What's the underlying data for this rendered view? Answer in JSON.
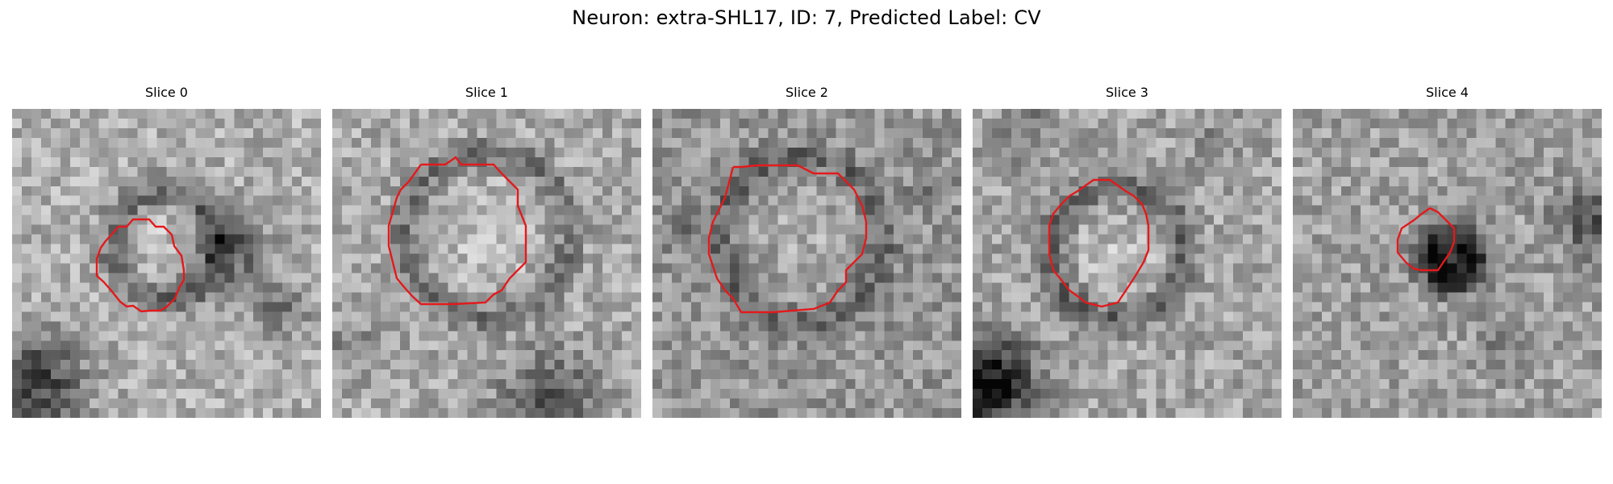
{
  "figure": {
    "title": "Neuron: extra-SHL17, ID: 7, Predicted Label: CV",
    "contour_color": "#e31a1c",
    "colormap": "gray",
    "panels": [
      {
        "title": "Slice 0",
        "kind": "microscopy-patch",
        "contour": "outline"
      },
      {
        "title": "Slice 1",
        "kind": "microscopy-patch",
        "contour": "outline"
      },
      {
        "title": "Slice 2",
        "kind": "microscopy-patch",
        "contour": "outline"
      },
      {
        "title": "Slice 3",
        "kind": "microscopy-patch",
        "contour": "outline"
      },
      {
        "title": "Slice 4",
        "kind": "microscopy-patch",
        "contour": "outline"
      }
    ]
  }
}
